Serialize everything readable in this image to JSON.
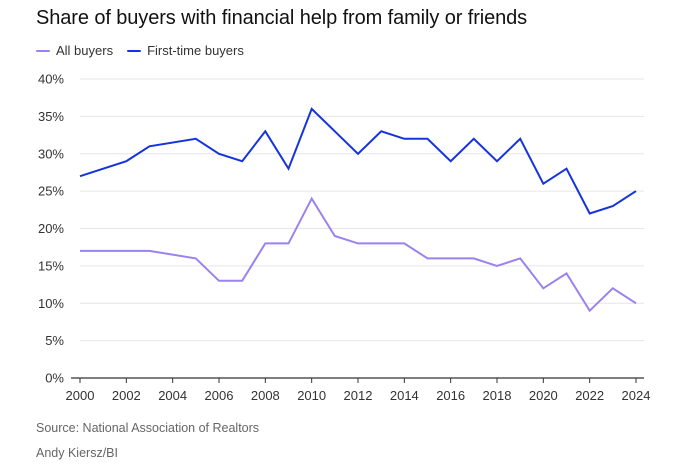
{
  "title": "Share of buyers with financial help from family or friends",
  "source": "Source: National Association of Realtors",
  "credit": "Andy Kiersz/BI",
  "colors": {
    "all_buyers": "#9b82ee",
    "first_time_buyers": "#1634dc",
    "grid": "#e6e6e6",
    "axis": "#333333",
    "tick_text": "#333333"
  },
  "chart_data": {
    "type": "line",
    "title": "Share of buyers with financial help from family or friends",
    "xlabel": "",
    "ylabel": "",
    "x": [
      2000,
      2002,
      2003,
      2005,
      2006,
      2007,
      2008,
      2009,
      2010,
      2011,
      2012,
      2013,
      2014,
      2015,
      2016,
      2017,
      2018,
      2019,
      2020,
      2021,
      2022,
      2023,
      2024
    ],
    "xlim": [
      2000,
      2024
    ],
    "ylim": [
      0,
      40
    ],
    "x_ticks": [
      "2000",
      "2002",
      "2004",
      "2006",
      "2008",
      "2010",
      "2012",
      "2014",
      "2016",
      "2018",
      "2020",
      "2022",
      "2024"
    ],
    "y_ticks": [
      "0%",
      "5%",
      "10%",
      "15%",
      "20%",
      "25%",
      "30%",
      "35%",
      "40%"
    ],
    "grid": true,
    "legend": "top-left",
    "series": [
      {
        "name": "All buyers",
        "color_key": "all_buyers",
        "values": [
          17,
          17,
          17,
          16,
          13,
          13,
          18,
          18,
          24,
          19,
          18,
          18,
          18,
          16,
          16,
          16,
          15,
          16,
          12,
          14,
          9,
          12,
          10
        ]
      },
      {
        "name": "First-time buyers",
        "color_key": "first_time_buyers",
        "values": [
          27,
          29,
          31,
          32,
          30,
          29,
          33,
          28,
          36,
          33,
          30,
          33,
          32,
          32,
          29,
          32,
          29,
          32,
          26,
          28,
          22,
          23,
          25
        ]
      }
    ]
  }
}
